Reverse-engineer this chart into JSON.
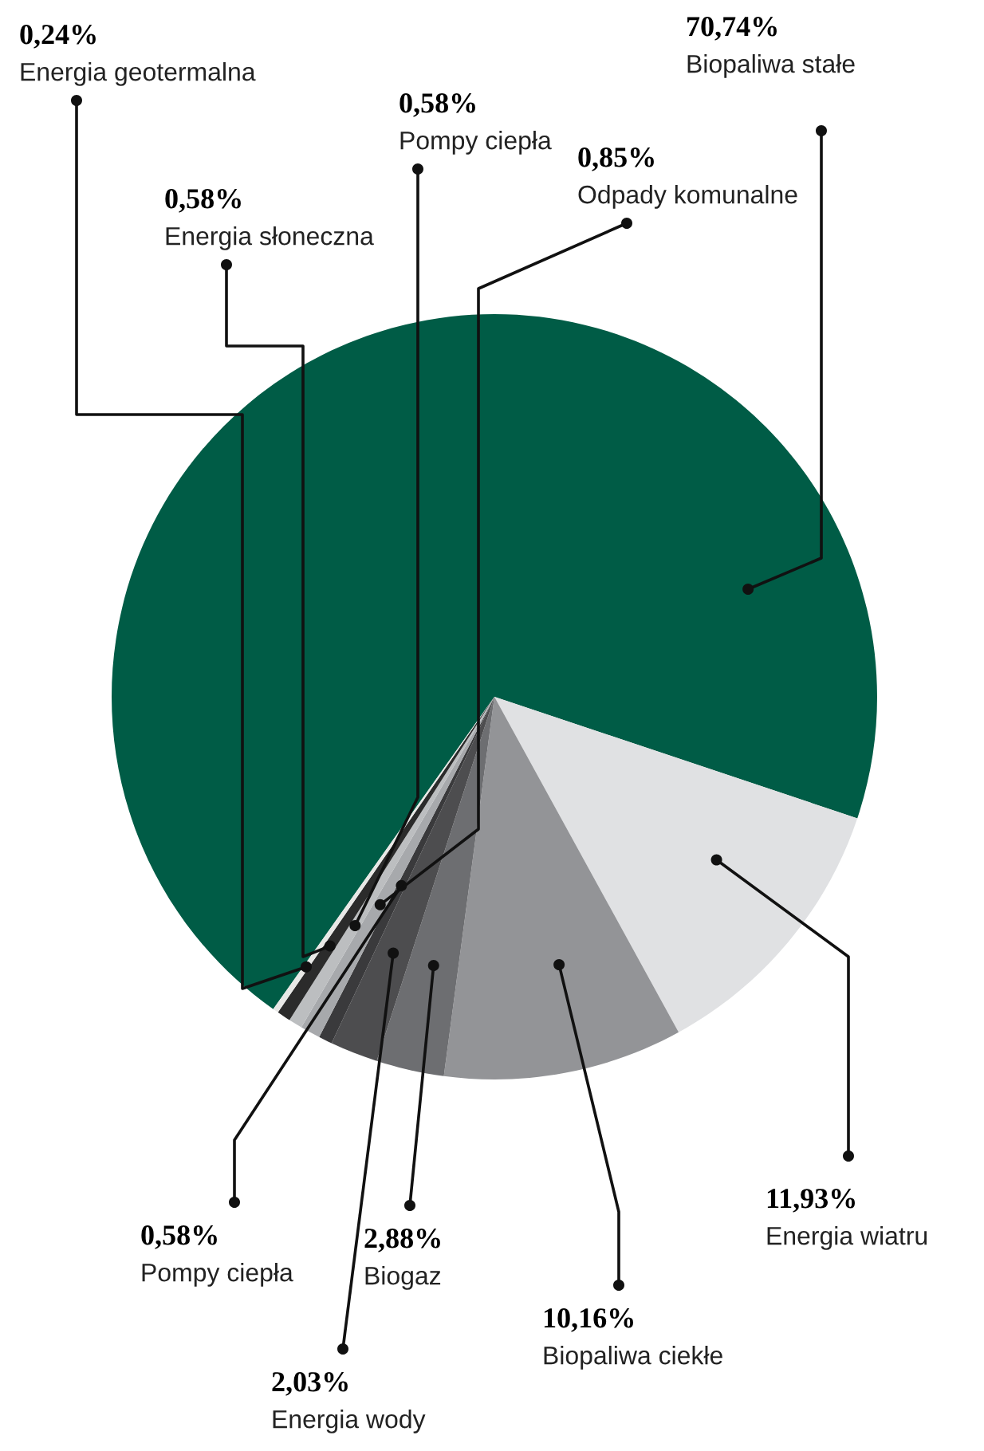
{
  "chart_data": {
    "type": "pie",
    "categories": [
      "Biopaliwa stałe",
      "Energia wiatru",
      "Biopaliwa ciekłe",
      "Biogaz",
      "Energia wody",
      "Pompy ciepła",
      "Odpady komunalne",
      "Pompy ciepła",
      "Energia słoneczna",
      "Energia geotermalna"
    ],
    "values": [
      70.74,
      11.93,
      10.16,
      2.88,
      2.03,
      0.58,
      0.85,
      0.58,
      0.58,
      0.24
    ],
    "value_labels": [
      "70,74%",
      "11,93%",
      "10,16%",
      "2,88%",
      "2,03%",
      "0,58%",
      "0,85%",
      "0,58%",
      "0,58%",
      "0,24%"
    ],
    "colors": [
      "#005c46",
      "#e0e1e3",
      "#939497",
      "#6d6e71",
      "#4d4d4f",
      "#3a3a3c",
      "#a7a9ac",
      "#bcbec0",
      "#2b2b2b",
      "#e8e8e6"
    ]
  }
}
